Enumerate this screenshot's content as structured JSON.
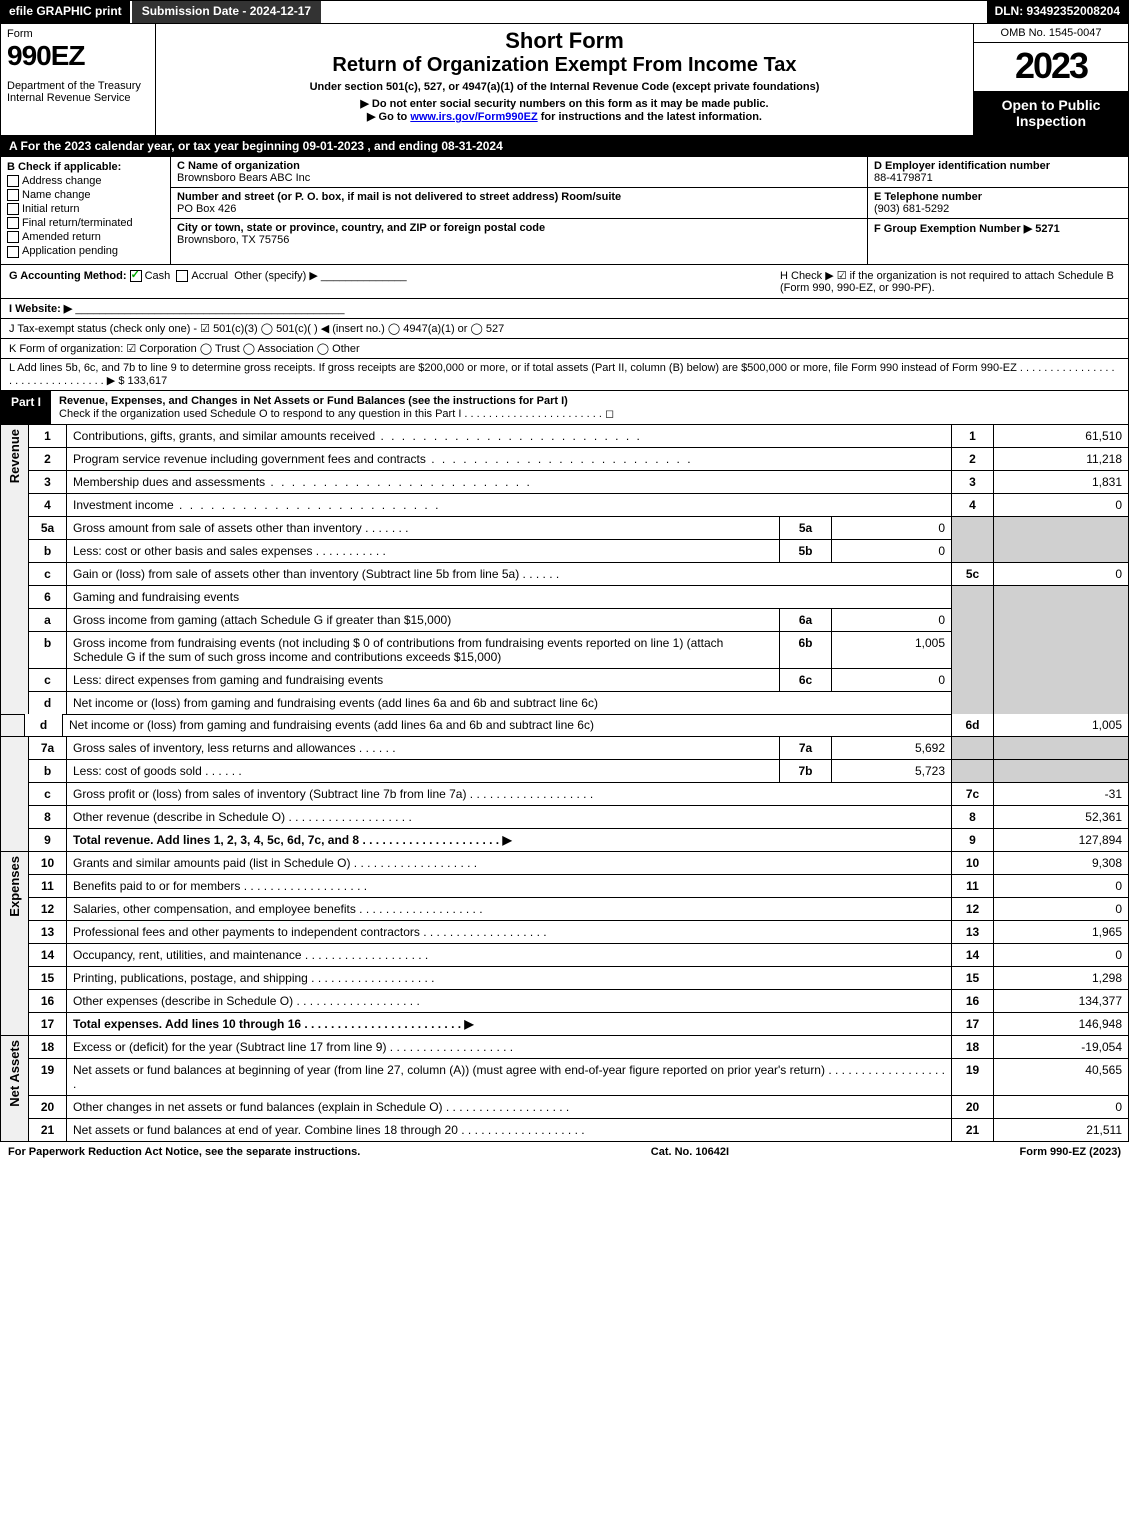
{
  "topbar": {
    "efile": "efile GRAPHIC print",
    "submission": "Submission Date - 2024-12-17",
    "dln": "DLN: 93492352008204"
  },
  "header": {
    "form_label": "Form",
    "form_code": "990EZ",
    "dept": "Department of the Treasury\nInternal Revenue Service",
    "short_form": "Short Form",
    "return_title": "Return of Organization Exempt From Income Tax",
    "under": "Under section 501(c), 527, or 4947(a)(1) of the Internal Revenue Code (except private foundations)",
    "no_ssn": "▶ Do not enter social security numbers on this form as it may be made public.",
    "goto_pre": "▶ Go to ",
    "goto_link": "www.irs.gov/Form990EZ",
    "goto_post": " for instructions and the latest information.",
    "omb": "OMB No. 1545-0047",
    "year": "2023",
    "open": "Open to Public Inspection"
  },
  "sectionA": "A  For the 2023 calendar year, or tax year beginning 09-01-2023 , and ending 08-31-2024",
  "B": {
    "title": "B  Check if applicable:",
    "opts": [
      "Address change",
      "Name change",
      "Initial return",
      "Final return/terminated",
      "Amended return",
      "Application pending"
    ]
  },
  "C": {
    "name_h": "C Name of organization",
    "name": "Brownsboro Bears ABC Inc",
    "addr_h": "Number and street (or P. O. box, if mail is not delivered to street address)      Room/suite",
    "addr": "PO Box 426",
    "city_h": "City or town, state or province, country, and ZIP or foreign postal code",
    "city": "Brownsboro, TX  75756"
  },
  "DEF": {
    "d_h": "D Employer identification number",
    "d_v": "88-4179871",
    "e_h": "E Telephone number",
    "e_v": "(903) 681-5292",
    "f_h": "F Group Exemption Number  ▶ 5271"
  },
  "G": {
    "label": "G Accounting Method:",
    "cash": "Cash",
    "accrual": "Accrual",
    "other": "Other (specify) ▶"
  },
  "H": "H   Check ▶   ☑   if the organization is not required to attach Schedule B (Form 990, 990-EZ, or 990-PF).",
  "I": "I Website: ▶",
  "J": "J Tax-exempt status (check only one) -  ☑ 501(c)(3)  ◯ 501(c)(  )  ◀ (insert no.)  ◯ 4947(a)(1) or  ◯ 527",
  "K": "K Form of organization:   ☑ Corporation   ◯ Trust   ◯ Association   ◯ Other",
  "L": {
    "text": "L Add lines 5b, 6c, and 7b to line 9 to determine gross receipts. If gross receipts are $200,000 or more, or if total assets (Part II, column (B) below) are $500,000 or more, file Form 990 instead of Form 990-EZ  . . . . . . . . . . . . . . . . . . . . . . . . . . . . . . . .  ▶ $",
    "val": "133,617"
  },
  "partI": {
    "label": "Part I",
    "title": "Revenue, Expenses, and Changes in Net Assets or Fund Balances (see the instructions for Part I)",
    "check": "Check if the organization used Schedule O to respond to any question in this Part I . . . . . . . . . . . . . . . . . . . . . . .   ◻"
  },
  "lines": {
    "l1": {
      "n": "1",
      "d": "Contributions, gifts, grants, and similar amounts received",
      "v": "61,510"
    },
    "l2": {
      "n": "2",
      "d": "Program service revenue including government fees and contracts",
      "v": "11,218"
    },
    "l3": {
      "n": "3",
      "d": "Membership dues and assessments",
      "v": "1,831"
    },
    "l4": {
      "n": "4",
      "d": "Investment income",
      "v": "0"
    },
    "l5a": {
      "n": "5a",
      "d": "Gross amount from sale of assets other than inventory",
      "sb": "5a",
      "sv": "0"
    },
    "l5b": {
      "n": "b",
      "d": "Less: cost or other basis and sales expenses",
      "sb": "5b",
      "sv": "0"
    },
    "l5c": {
      "n": "c",
      "d": "Gain or (loss) from sale of assets other than inventory (Subtract line 5b from line 5a)",
      "lab": "5c",
      "v": "0"
    },
    "l6": {
      "n": "6",
      "d": "Gaming and fundraising events"
    },
    "l6a": {
      "n": "a",
      "d": "Gross income from gaming (attach Schedule G if greater than $15,000)",
      "sb": "6a",
      "sv": "0"
    },
    "l6b": {
      "n": "b",
      "d": "Gross income from fundraising events (not including $  0            of contributions from fundraising events reported on line 1) (attach Schedule G if the sum of such gross income and contributions exceeds $15,000)",
      "sb": "6b",
      "sv": "1,005"
    },
    "l6c": {
      "n": "c",
      "d": "Less: direct expenses from gaming and fundraising events",
      "sb": "6c",
      "sv": "0"
    },
    "l6d": {
      "n": "d",
      "d": "Net income or (loss) from gaming and fundraising events (add lines 6a and 6b and subtract line 6c)",
      "lab": "6d",
      "v": "1,005"
    },
    "l7a": {
      "n": "7a",
      "d": "Gross sales of inventory, less returns and allowances",
      "sb": "7a",
      "sv": "5,692"
    },
    "l7b": {
      "n": "b",
      "d": "Less: cost of goods sold",
      "sb": "7b",
      "sv": "5,723"
    },
    "l7c": {
      "n": "c",
      "d": "Gross profit or (loss) from sales of inventory (Subtract line 7b from line 7a)",
      "lab": "7c",
      "v": "-31"
    },
    "l8": {
      "n": "8",
      "d": "Other revenue (describe in Schedule O)",
      "v": "52,361"
    },
    "l9": {
      "n": "9",
      "d": "Total revenue. Add lines 1, 2, 3, 4, 5c, 6d, 7c, and 8   . . . . . . . . . . . . . . . . . . . . .  ▶",
      "v": "127,894",
      "bold": true
    },
    "l10": {
      "n": "10",
      "d": "Grants and similar amounts paid (list in Schedule O)",
      "v": "9,308"
    },
    "l11": {
      "n": "11",
      "d": "Benefits paid to or for members",
      "v": "0"
    },
    "l12": {
      "n": "12",
      "d": "Salaries, other compensation, and employee benefits",
      "v": "0"
    },
    "l13": {
      "n": "13",
      "d": "Professional fees and other payments to independent contractors",
      "v": "1,965"
    },
    "l14": {
      "n": "14",
      "d": "Occupancy, rent, utilities, and maintenance",
      "v": "0"
    },
    "l15": {
      "n": "15",
      "d": "Printing, publications, postage, and shipping",
      "v": "1,298"
    },
    "l16": {
      "n": "16",
      "d": "Other expenses (describe in Schedule O)",
      "v": "134,377"
    },
    "l17": {
      "n": "17",
      "d": "Total expenses. Add lines 10 through 16   . . . . . . . . . . . . . . . . . . . . . . . .  ▶",
      "v": "146,948",
      "bold": true
    },
    "l18": {
      "n": "18",
      "d": "Excess or (deficit) for the year (Subtract line 17 from line 9)",
      "v": "-19,054"
    },
    "l19": {
      "n": "19",
      "d": "Net assets or fund balances at beginning of year (from line 27, column (A)) (must agree with end-of-year figure reported on prior year's return)",
      "v": "40,565"
    },
    "l20": {
      "n": "20",
      "d": "Other changes in net assets or fund balances (explain in Schedule O)",
      "v": "0"
    },
    "l21": {
      "n": "21",
      "d": "Net assets or fund balances at end of year. Combine lines 18 through 20",
      "v": "21,511"
    }
  },
  "vlabels": {
    "rev": "Revenue",
    "exp": "Expenses",
    "net": "Net Assets"
  },
  "footer": {
    "left": "For Paperwork Reduction Act Notice, see the separate instructions.",
    "mid": "Cat. No. 10642I",
    "right": "Form 990-EZ (2023)"
  }
}
